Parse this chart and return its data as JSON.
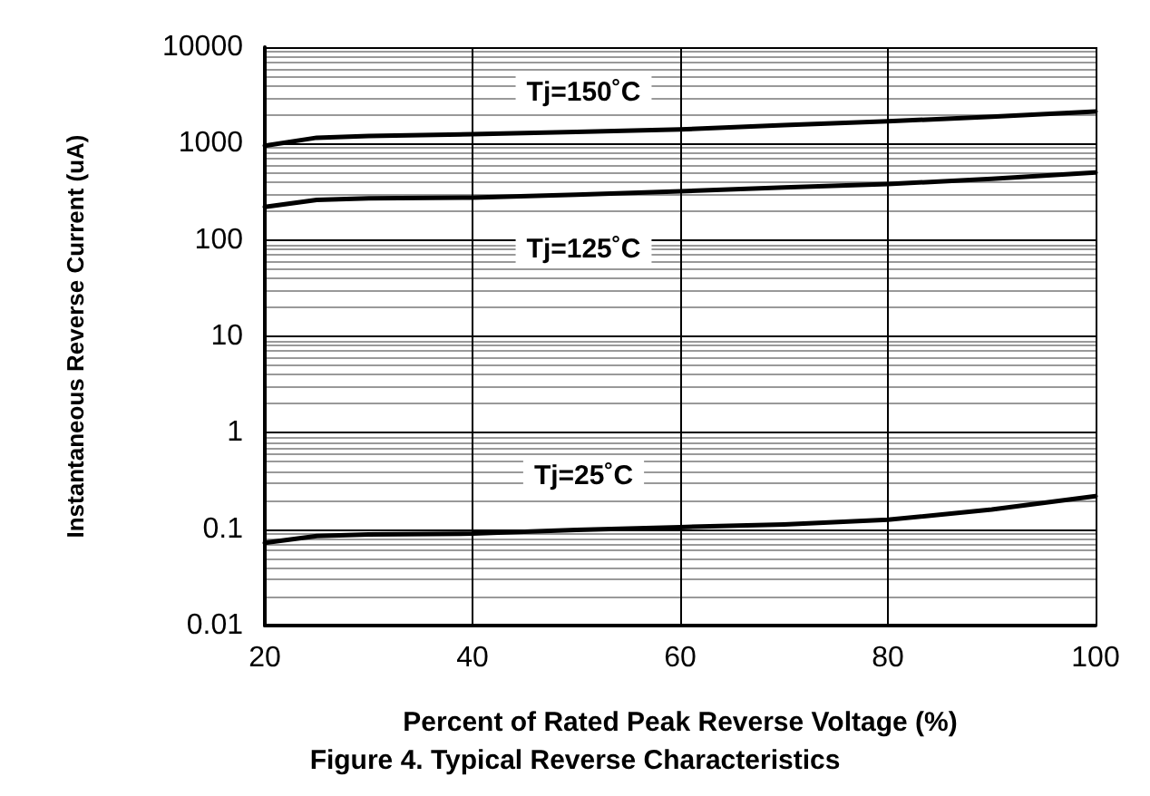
{
  "chart_data": {
    "type": "line",
    "xlabel": "Percent of Rated Peak Reverse Voltage (%)",
    "ylabel": "Instantaneous Reverse Current (uA)",
    "log": "y",
    "grid": true,
    "legend": false,
    "marker": "none",
    "line_style": "solid",
    "xlim": [
      20,
      100
    ],
    "xticks": [
      20,
      40,
      60,
      80,
      100
    ],
    "ylim": [
      0.01,
      10000
    ],
    "yticks": [
      0.01,
      0.1,
      1,
      10,
      100,
      1000,
      10000
    ],
    "series": [
      {
        "name": "Tj=150˚C",
        "color": "#000000",
        "x": [
          20,
          25,
          30,
          40,
          50,
          60,
          70,
          80,
          90,
          100
        ],
        "values": [
          950,
          1150,
          1200,
          1250,
          1320,
          1400,
          1550,
          1700,
          1900,
          2150
        ]
      },
      {
        "name": "Tj=125˚C",
        "color": "#000000",
        "x": [
          20,
          25,
          30,
          40,
          50,
          60,
          70,
          80,
          90,
          100
        ],
        "values": [
          220,
          260,
          270,
          275,
          295,
          320,
          350,
          380,
          430,
          500
        ]
      },
      {
        "name": "Tj=25˚C",
        "color": "#000000",
        "x": [
          20,
          25,
          30,
          40,
          50,
          60,
          70,
          80,
          90,
          100
        ],
        "values": [
          0.072,
          0.085,
          0.088,
          0.09,
          0.098,
          0.105,
          0.112,
          0.125,
          0.16,
          0.22
        ]
      }
    ],
    "annotations": [
      "Figure 4. Typical Reverse Characteristics"
    ]
  }
}
